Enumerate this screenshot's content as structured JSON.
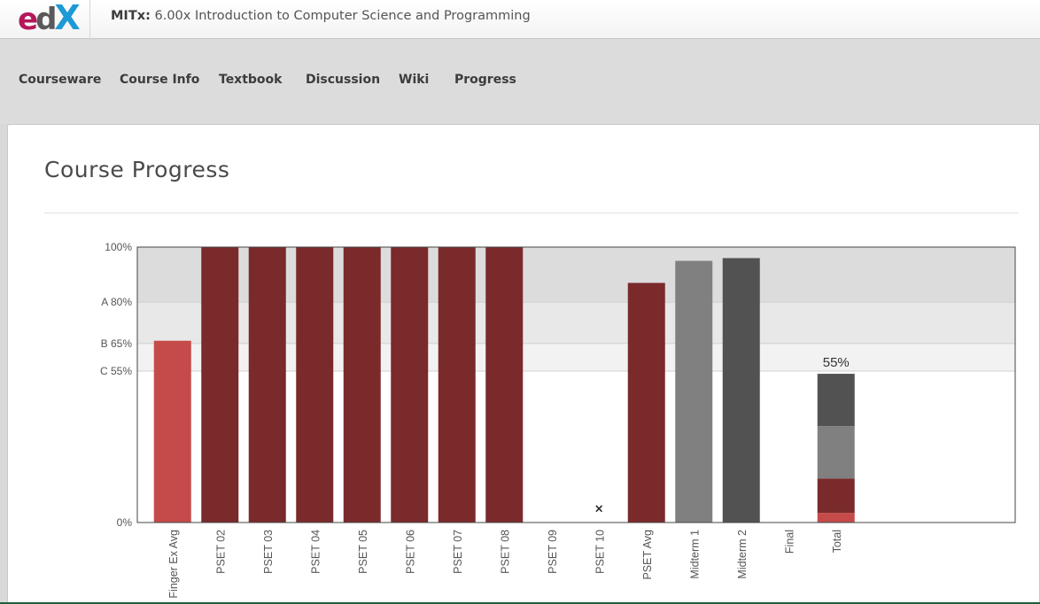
{
  "header": {
    "logo": {
      "e": "e",
      "d": "d",
      "x": "X"
    },
    "org": "MITx:",
    "course_title": "6.00x Introduction to Computer Science and Programming"
  },
  "nav": {
    "items": [
      "Courseware",
      "Course Info",
      "Textbook",
      "Discussion",
      "Wiki",
      "Progress"
    ]
  },
  "page": {
    "title": "Course Progress"
  },
  "colors": {
    "bar_dark_red": "#7a2a2b",
    "bar_red": "#c54b4b",
    "bar_gray": "#808080",
    "bar_dark_gray": "#525252",
    "band_a": "#dcdcdc",
    "band_b": "#e8e8e8",
    "band_c": "#f2f2f2"
  },
  "chart_data": {
    "type": "bar",
    "ylim": [
      0,
      100
    ],
    "y_ticks": [
      {
        "value": 100,
        "label": "100%"
      },
      {
        "value": 80,
        "label": "A 80%"
      },
      {
        "value": 65,
        "label": "B 65%"
      },
      {
        "value": 55,
        "label": "C 55%"
      },
      {
        "value": 0,
        "label": "0%"
      }
    ],
    "grade_bands": [
      {
        "from": 80,
        "to": 100,
        "color": "#dcdcdc"
      },
      {
        "from": 65,
        "to": 80,
        "color": "#e8e8e8"
      },
      {
        "from": 55,
        "to": 65,
        "color": "#f2f2f2"
      }
    ],
    "categories": [
      "Finger Ex Avg",
      "PSET 02",
      "PSET 03",
      "PSET 04",
      "PSET 05",
      "PSET 06",
      "PSET 07",
      "PSET 08",
      "PSET 09",
      "PSET 10",
      "PSET Avg",
      "Midterm 1",
      "Midterm 2",
      "Final",
      "Total"
    ],
    "values": [
      66,
      100,
      100,
      100,
      100,
      100,
      100,
      100,
      0,
      0,
      87,
      95,
      96,
      0,
      55
    ],
    "bar_colors": [
      "#c54b4b",
      "#7a2a2b",
      "#7a2a2b",
      "#7a2a2b",
      "#7a2a2b",
      "#7a2a2b",
      "#7a2a2b",
      "#7a2a2b",
      "#7a2a2b",
      "#7a2a2b",
      "#7a2a2b",
      "#808080",
      "#525252",
      "#525252",
      null
    ],
    "dropped_marker": {
      "category": "PSET 10",
      "symbol": "×",
      "value": 5
    },
    "total_stack": [
      {
        "value": 3.5,
        "color": "#c54b4b"
      },
      {
        "value": 12.5,
        "color": "#7a2a2b"
      },
      {
        "value": 19,
        "color": "#808080"
      },
      {
        "value": 19,
        "color": "#525252"
      }
    ],
    "total_label": "55%"
  }
}
